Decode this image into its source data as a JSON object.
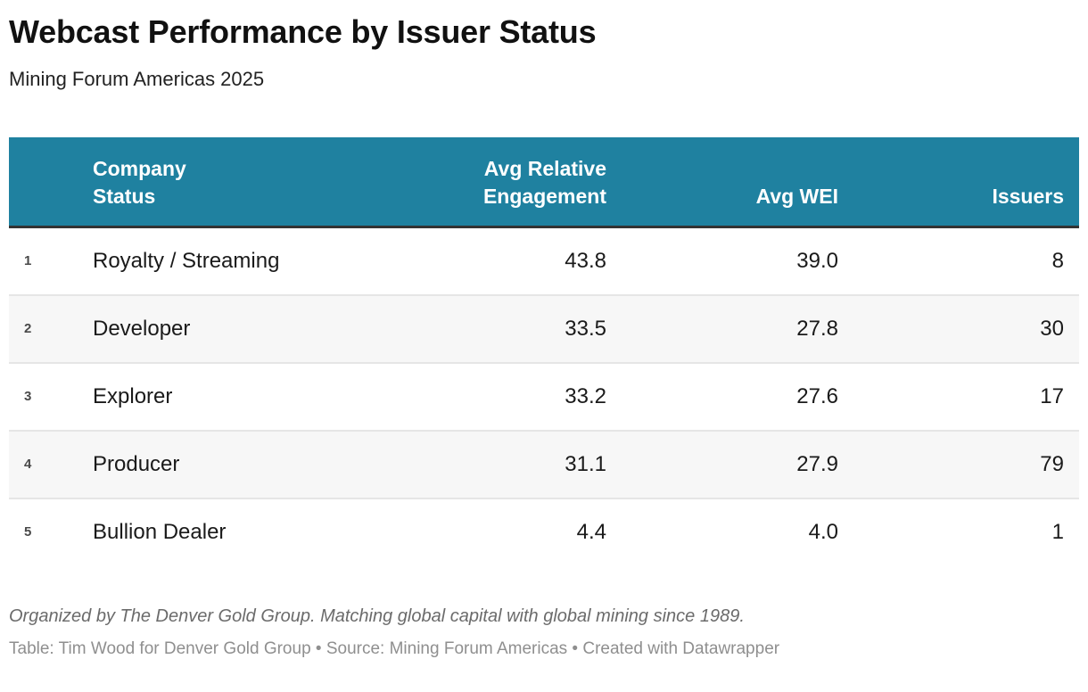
{
  "colors": {
    "header_bg": "#1f81a0",
    "header_text": "#ffffff",
    "thead_underline": "#333333",
    "row_divider": "#e6e6e6",
    "alt_row_bg": "#f7f7f7"
  },
  "header": {
    "title": "Webcast Performance by Issuer Status",
    "subtitle": "Mining Forum Americas 2025"
  },
  "table": {
    "columns": {
      "status": "Company\nStatus",
      "engagement": "Avg Relative\nEngagement",
      "wei": "Avg WEI",
      "issuers": "Issuers"
    },
    "rows": [
      {
        "rank": "1",
        "status": "Royalty / Streaming",
        "engagement": "43.8",
        "wei": "39.0",
        "issuers": "8"
      },
      {
        "rank": "2",
        "status": "Developer",
        "engagement": "33.5",
        "wei": "27.8",
        "issuers": "30"
      },
      {
        "rank": "3",
        "status": "Explorer",
        "engagement": "33.2",
        "wei": "27.6",
        "issuers": "17"
      },
      {
        "rank": "4",
        "status": "Producer",
        "engagement": "31.1",
        "wei": "27.9",
        "issuers": "79"
      },
      {
        "rank": "5",
        "status": "Bullion Dealer",
        "engagement": "4.4",
        "wei": "4.0",
        "issuers": "1"
      }
    ]
  },
  "footer": {
    "byline": "Organized by The Denver Gold Group. Matching global capital with global mining since 1989.",
    "credits": "Table: Tim Wood for Denver Gold Group • Source: Mining Forum Americas • Created with Datawrapper"
  },
  "chart_data": {
    "type": "table",
    "title": "Webcast Performance by Issuer Status",
    "subtitle": "Mining Forum Americas 2025",
    "columns": [
      "Company Status",
      "Avg Relative Engagement",
      "Avg WEI",
      "Issuers"
    ],
    "rows": [
      [
        "Royalty / Streaming",
        43.8,
        39.0,
        8
      ],
      [
        "Developer",
        33.5,
        27.8,
        30
      ],
      [
        "Explorer",
        33.2,
        27.6,
        17
      ],
      [
        "Producer",
        31.1,
        27.9,
        79
      ],
      [
        "Bullion Dealer",
        4.4,
        4.0,
        1
      ]
    ],
    "notes": "Numeric columns right-aligned; rows ranked 1-5 by Avg Relative Engagement descending"
  }
}
